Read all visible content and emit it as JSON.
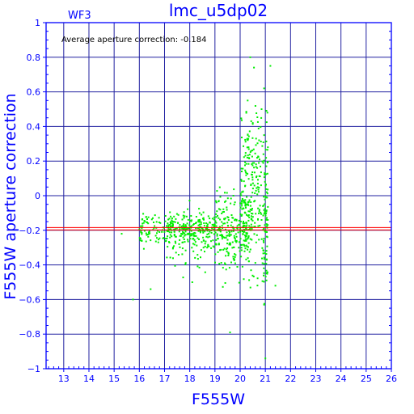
{
  "colors": {
    "axis": "#0000ff",
    "grid": "#2020a0",
    "points": "#00ee00",
    "reference_line": "#ff0000",
    "text": "#0000ff",
    "annotation": "#000000",
    "background": "#ffffff"
  },
  "chart_data": {
    "type": "scatter",
    "title": "lmc_u5dp02",
    "chip_label": "WF3",
    "annotation": "Average aperture correction: -0.184",
    "xlabel": "F555W",
    "ylabel": "F555W aperture correction",
    "xlim": [
      12.3,
      26
    ],
    "ylim": [
      -1,
      1
    ],
    "x_ticks": [
      13,
      14,
      15,
      16,
      17,
      18,
      19,
      20,
      21,
      22,
      23,
      24,
      25,
      26
    ],
    "x_tick_labels": [
      "13",
      "14",
      "15",
      "16",
      "17",
      "18",
      "19",
      "20",
      "21",
      "22",
      "23",
      "24",
      "25",
      "26"
    ],
    "y_ticks": [
      -1,
      -0.8,
      -0.6,
      -0.4,
      -0.2,
      0,
      0.2,
      0.4,
      0.6,
      0.8,
      1
    ],
    "y_tick_labels": [
      "−1",
      "−0.8",
      "−0.6",
      "−0.4",
      "−0.2",
      "0",
      "0.2",
      "0.4",
      "0.6",
      "0.8",
      "1"
    ],
    "grid": true,
    "reference_lines": [
      {
        "y": -0.184,
        "color": "#ff0000"
      },
      {
        "y": -0.198,
        "color": "#ff0000"
      }
    ],
    "point_clusters": [
      {
        "x_range": [
          16.0,
          19.0
        ],
        "y_mean": -0.19,
        "y_sd": 0.04,
        "count": 240
      },
      {
        "x_range": [
          17.0,
          19.5
        ],
        "y_mean": -0.23,
        "y_sd": 0.08,
        "count": 140
      },
      {
        "x_range": [
          19.0,
          20.5
        ],
        "y_mean": -0.2,
        "y_sd": 0.1,
        "count": 220
      },
      {
        "x_range": [
          20.0,
          21.1
        ],
        "y_mean": -0.12,
        "y_sd": 0.17,
        "count": 160
      },
      {
        "x_range": [
          20.0,
          21.1
        ],
        "y_mean": 0.2,
        "y_sd": 0.17,
        "count": 110
      },
      {
        "x_range": [
          20.9,
          21.1
        ],
        "y_mean": -0.3,
        "y_sd": 0.18,
        "count": 40
      }
    ],
    "points": [
      {
        "x": 20.4,
        "y": 0.8
      },
      {
        "x": 21.2,
        "y": 0.75
      },
      {
        "x": 20.55,
        "y": 0.74
      },
      {
        "x": 20.95,
        "y": 0.62
      },
      {
        "x": 20.3,
        "y": 0.55
      },
      {
        "x": 20.85,
        "y": 0.5
      },
      {
        "x": 20.5,
        "y": 0.42
      },
      {
        "x": 20.95,
        "y": 0.35
      },
      {
        "x": 21.1,
        "y": 0.28
      },
      {
        "x": 20.75,
        "y": 0.32
      },
      {
        "x": 21.0,
        "y": -0.94
      },
      {
        "x": 19.6,
        "y": -0.79
      },
      {
        "x": 20.95,
        "y": -0.63
      },
      {
        "x": 15.75,
        "y": -0.6
      },
      {
        "x": 16.45,
        "y": -0.54
      },
      {
        "x": 15.3,
        "y": -0.22
      },
      {
        "x": 18.1,
        "y": -0.5
      },
      {
        "x": 21.4,
        "y": -0.52
      }
    ]
  }
}
